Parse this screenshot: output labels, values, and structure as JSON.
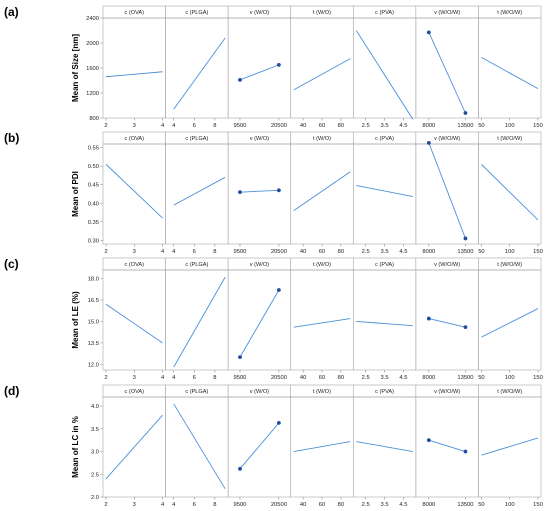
{
  "colors": {
    "line": "#4a90d9",
    "marker": "#1f4e9c"
  },
  "chart_data": [
    {
      "type": "line",
      "panel_label": "(a)",
      "ylabel": "Mean of Size [nm]",
      "ylim": [
        800,
        2400
      ],
      "yticks": [
        "800",
        "1200",
        "1600",
        "2000",
        "2400"
      ],
      "ytick_values": [
        800,
        1200,
        1600,
        2000,
        2400
      ],
      "factors": [
        {
          "title": "c (OVA)",
          "xlim": [
            2,
            4
          ],
          "xticks": [
            2,
            3,
            4
          ],
          "xtick_labels": [
            "2",
            "3",
            "4"
          ],
          "x": [
            2,
            4
          ],
          "y": [
            1460,
            1540
          ],
          "markers": false
        },
        {
          "title": "c (PLGA)",
          "xlim": [
            3.5,
            9
          ],
          "xticks": [
            4,
            6,
            8
          ],
          "xtick_labels": [
            "4",
            "6",
            "8"
          ],
          "x": [
            4,
            9
          ],
          "y": [
            940,
            2080
          ],
          "markers": false
        },
        {
          "title": "v (W/O)",
          "xlim": [
            7000,
            23000
          ],
          "xticks": [
            9500,
            20500
          ],
          "xtick_labels": [
            "9500",
            "20500"
          ],
          "x": [
            9500,
            20500
          ],
          "y": [
            1410,
            1650
          ],
          "markers": true
        },
        {
          "title": "t (W/O)",
          "xlim": [
            30,
            90
          ],
          "xticks": [
            40,
            60,
            80
          ],
          "xtick_labels": [
            "40",
            "60",
            "80"
          ],
          "x": [
            30,
            90
          ],
          "y": [
            1250,
            1750
          ],
          "markers": false
        },
        {
          "title": "c (PVA)",
          "xlim": [
            2,
            5
          ],
          "xticks": [
            2.5,
            3.5,
            4.5
          ],
          "xtick_labels": [
            "2.5",
            "3.5",
            "4.5"
          ],
          "x": [
            2,
            5
          ],
          "y": [
            2200,
            780
          ],
          "markers": false
        },
        {
          "title": "v (W/O/W)",
          "xlim": [
            6500,
            15000
          ],
          "xticks": [
            8000,
            13500
          ],
          "xtick_labels": [
            "8000",
            "13500"
          ],
          "x": [
            8000,
            13500
          ],
          "y": [
            2170,
            880
          ],
          "markers": true
        },
        {
          "title": "t (W/O/W)",
          "xlim": [
            50,
            150
          ],
          "xticks": [
            50,
            100,
            150
          ],
          "xtick_labels": [
            "50",
            "100",
            "150"
          ],
          "x": [
            50,
            150
          ],
          "y": [
            1770,
            1270
          ],
          "markers": false
        }
      ]
    },
    {
      "type": "line",
      "panel_label": "(b)",
      "ylabel": "Mean of PDI",
      "ylim": [
        0.29,
        0.56
      ],
      "yticks": [
        "0.30",
        "0.35",
        "0.40",
        "0.45",
        "0.50",
        "0.55"
      ],
      "ytick_values": [
        0.3,
        0.35,
        0.4,
        0.45,
        0.5,
        0.55
      ],
      "factors": [
        {
          "title": "c (OVA)",
          "xlim": [
            2,
            4
          ],
          "xticks": [
            2,
            3,
            4
          ],
          "xtick_labels": [
            "2",
            "3",
            "4"
          ],
          "x": [
            2,
            4
          ],
          "y": [
            0.505,
            0.36
          ],
          "markers": false
        },
        {
          "title": "c (PLGA)",
          "xlim": [
            3.5,
            9
          ],
          "xticks": [
            4,
            6,
            8
          ],
          "xtick_labels": [
            "4",
            "6",
            "8"
          ],
          "x": [
            4,
            9
          ],
          "y": [
            0.395,
            0.47
          ],
          "markers": false
        },
        {
          "title": "v (W/O)",
          "xlim": [
            7000,
            23000
          ],
          "xticks": [
            9500,
            20500
          ],
          "xtick_labels": [
            "9500",
            "20500"
          ],
          "x": [
            9500,
            20500
          ],
          "y": [
            0.43,
            0.435
          ],
          "markers": true
        },
        {
          "title": "t (W/O)",
          "xlim": [
            30,
            90
          ],
          "xticks": [
            40,
            60,
            80
          ],
          "xtick_labels": [
            "40",
            "60",
            "80"
          ],
          "x": [
            30,
            90
          ],
          "y": [
            0.38,
            0.485
          ],
          "markers": false
        },
        {
          "title": "c (PVA)",
          "xlim": [
            2,
            5
          ],
          "xticks": [
            2.5,
            3.5,
            4.5
          ],
          "xtick_labels": [
            "2.5",
            "3.5",
            "4.5"
          ],
          "x": [
            2,
            5
          ],
          "y": [
            0.448,
            0.418
          ],
          "markers": false
        },
        {
          "title": "v (W/O/W)",
          "xlim": [
            6500,
            15000
          ],
          "xticks": [
            8000,
            13500
          ],
          "xtick_labels": [
            "8000",
            "13500"
          ],
          "x": [
            8000,
            13500
          ],
          "y": [
            0.563,
            0.305
          ],
          "markers": true
        },
        {
          "title": "t (W/O/W)",
          "xlim": [
            50,
            150
          ],
          "xticks": [
            50,
            100,
            150
          ],
          "xtick_labels": [
            "50",
            "100",
            "150"
          ],
          "x": [
            50,
            150
          ],
          "y": [
            0.505,
            0.355
          ],
          "markers": false
        }
      ]
    },
    {
      "type": "line",
      "panel_label": "(c)",
      "ylabel": "Mean of LE (%)",
      "ylim": [
        11.6,
        18.6
      ],
      "yticks": [
        "12.0",
        "13.5",
        "15.0",
        "16.5",
        "18.0"
      ],
      "ytick_values": [
        12.0,
        13.5,
        15.0,
        16.5,
        18.0
      ],
      "factors": [
        {
          "title": "c (OVA)",
          "xlim": [
            2,
            4
          ],
          "xticks": [
            2,
            3,
            4
          ],
          "xtick_labels": [
            "2",
            "3",
            "4"
          ],
          "x": [
            2,
            4
          ],
          "y": [
            16.2,
            13.5
          ],
          "markers": false
        },
        {
          "title": "c (PLGA)",
          "xlim": [
            3.5,
            9
          ],
          "xticks": [
            4,
            6,
            8
          ],
          "xtick_labels": [
            "4",
            "6",
            "8"
          ],
          "x": [
            4,
            9
          ],
          "y": [
            11.8,
            18.1
          ],
          "markers": false
        },
        {
          "title": "v (W/O)",
          "xlim": [
            7000,
            23000
          ],
          "xticks": [
            9500,
            20500
          ],
          "xtick_labels": [
            "9500",
            "20500"
          ],
          "x": [
            9500,
            20500
          ],
          "y": [
            12.5,
            17.2
          ],
          "markers": true
        },
        {
          "title": "t (W/O)",
          "xlim": [
            30,
            90
          ],
          "xticks": [
            40,
            60,
            80
          ],
          "xtick_labels": [
            "40",
            "60",
            "80"
          ],
          "x": [
            30,
            90
          ],
          "y": [
            14.6,
            15.2
          ],
          "markers": false
        },
        {
          "title": "c (PVA)",
          "xlim": [
            2,
            5
          ],
          "xticks": [
            2.5,
            3.5,
            4.5
          ],
          "xtick_labels": [
            "2.5",
            "3.5",
            "4.5"
          ],
          "x": [
            2,
            5
          ],
          "y": [
            15.0,
            14.7
          ],
          "markers": false
        },
        {
          "title": "v (W/O/W)",
          "xlim": [
            6500,
            15000
          ],
          "xticks": [
            8000,
            13500
          ],
          "xtick_labels": [
            "8000",
            "13500"
          ],
          "x": [
            8000,
            13500
          ],
          "y": [
            15.2,
            14.6
          ],
          "markers": true
        },
        {
          "title": "t (W/O/W)",
          "xlim": [
            50,
            150
          ],
          "xticks": [
            50,
            100,
            150
          ],
          "xtick_labels": [
            "50",
            "100",
            "150"
          ],
          "x": [
            50,
            150
          ],
          "y": [
            13.9,
            15.9
          ],
          "markers": false
        }
      ]
    },
    {
      "type": "line",
      "panel_label": "(d)",
      "ylabel": "Mean of LC in %",
      "ylim": [
        2.0,
        4.2
      ],
      "yticks": [
        "2.0",
        "2.5",
        "3.0",
        "3.5",
        "4.0"
      ],
      "ytick_values": [
        2.0,
        2.5,
        3.0,
        3.5,
        4.0
      ],
      "factors": [
        {
          "title": "c (OVA)",
          "xlim": [
            2,
            4
          ],
          "xticks": [
            2,
            3,
            4
          ],
          "xtick_labels": [
            "2",
            "3",
            "4"
          ],
          "x": [
            2,
            4
          ],
          "y": [
            2.4,
            3.8
          ],
          "markers": false
        },
        {
          "title": "c (PLGA)",
          "xlim": [
            3.5,
            9
          ],
          "xticks": [
            4,
            6,
            8
          ],
          "xtick_labels": [
            "4",
            "6",
            "8"
          ],
          "x": [
            4,
            9
          ],
          "y": [
            4.05,
            2.18
          ],
          "markers": false
        },
        {
          "title": "v (W/O)",
          "xlim": [
            7000,
            23000
          ],
          "xticks": [
            9500,
            20500
          ],
          "xtick_labels": [
            "9500",
            "20500"
          ],
          "x": [
            9500,
            20500
          ],
          "y": [
            2.62,
            3.63
          ],
          "markers": true
        },
        {
          "title": "t (W/O)",
          "xlim": [
            30,
            90
          ],
          "xticks": [
            40,
            60,
            80
          ],
          "xtick_labels": [
            "40",
            "60",
            "80"
          ],
          "x": [
            30,
            90
          ],
          "y": [
            3.0,
            3.22
          ],
          "markers": false
        },
        {
          "title": "c (PVA)",
          "xlim": [
            2,
            5
          ],
          "xticks": [
            2.5,
            3.5,
            4.5
          ],
          "xtick_labels": [
            "2.5",
            "3.5",
            "4.5"
          ],
          "x": [
            2,
            5
          ],
          "y": [
            3.22,
            3.0
          ],
          "markers": false
        },
        {
          "title": "v (W/O/W)",
          "xlim": [
            6500,
            15000
          ],
          "xticks": [
            8000,
            13500
          ],
          "xtick_labels": [
            "8000",
            "13500"
          ],
          "x": [
            8000,
            13500
          ],
          "y": [
            3.25,
            3.0
          ],
          "markers": true
        },
        {
          "title": "t (W/O/W)",
          "xlim": [
            50,
            150
          ],
          "xticks": [
            50,
            100,
            150
          ],
          "xtick_labels": [
            "50",
            "100",
            "150"
          ],
          "x": [
            50,
            150
          ],
          "y": [
            2.92,
            3.3
          ],
          "markers": false
        }
      ]
    }
  ]
}
